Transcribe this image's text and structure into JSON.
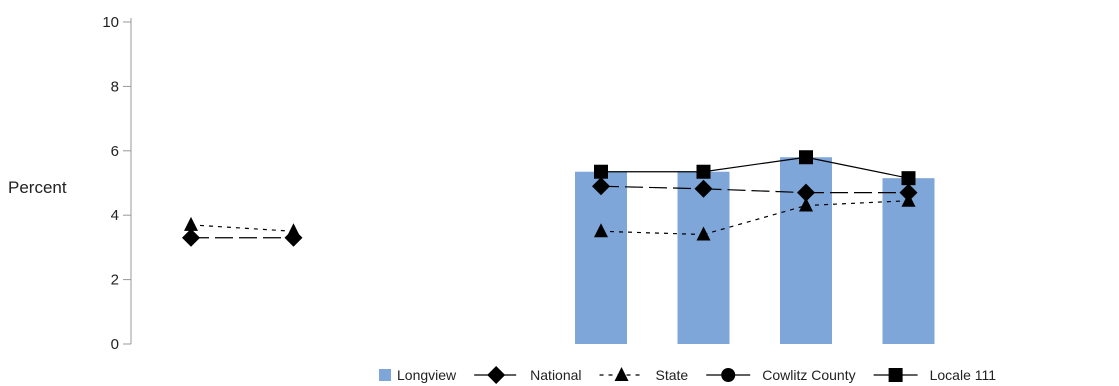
{
  "chart_data": {
    "type": "bar",
    "ylabel": "Percent",
    "ylim": [
      0,
      10
    ],
    "yticks": [
      "0",
      "2",
      "4",
      "6",
      "8",
      "10"
    ],
    "grid": false,
    "legend_position": "bottom-right",
    "bar_color": "#7ea6d8",
    "series": [
      {
        "name": "Longview",
        "kind": "bar",
        "color": "#7ea6d8",
        "points": [
          {
            "slot": 4,
            "y": 5.35
          },
          {
            "slot": 5,
            "y": 5.35
          },
          {
            "slot": 6,
            "y": 5.8
          },
          {
            "slot": 7,
            "y": 5.15
          }
        ]
      },
      {
        "name": "National",
        "kind": "line",
        "marker": "diamond",
        "dash": "long",
        "color": "#000000",
        "points": [
          {
            "slot": 0,
            "y": 3.3
          },
          {
            "slot": 1,
            "y": 3.3
          },
          {
            "slot": 4,
            "y": 4.9
          },
          {
            "slot": 5,
            "y": 4.82
          },
          {
            "slot": 6,
            "y": 4.7
          },
          {
            "slot": 7,
            "y": 4.7
          }
        ]
      },
      {
        "name": "State",
        "kind": "line",
        "marker": "triangle",
        "dash": "short",
        "color": "#000000",
        "points": [
          {
            "slot": 0,
            "y": 3.7
          },
          {
            "slot": 1,
            "y": 3.5
          },
          {
            "slot": 4,
            "y": 3.5
          },
          {
            "slot": 5,
            "y": 3.4
          },
          {
            "slot": 6,
            "y": 4.3
          },
          {
            "slot": 7,
            "y": 4.45
          }
        ]
      },
      {
        "name": "Cowlitz County",
        "kind": "line",
        "marker": "circle",
        "dash": "none",
        "color": "#000000",
        "points": []
      },
      {
        "name": "Locale 111",
        "kind": "line",
        "marker": "square",
        "dash": "none",
        "color": "#000000",
        "points": [
          {
            "slot": 4,
            "y": 5.35
          },
          {
            "slot": 5,
            "y": 5.35
          },
          {
            "slot": 6,
            "y": 5.8
          },
          {
            "slot": 7,
            "y": 5.15
          }
        ]
      }
    ]
  }
}
